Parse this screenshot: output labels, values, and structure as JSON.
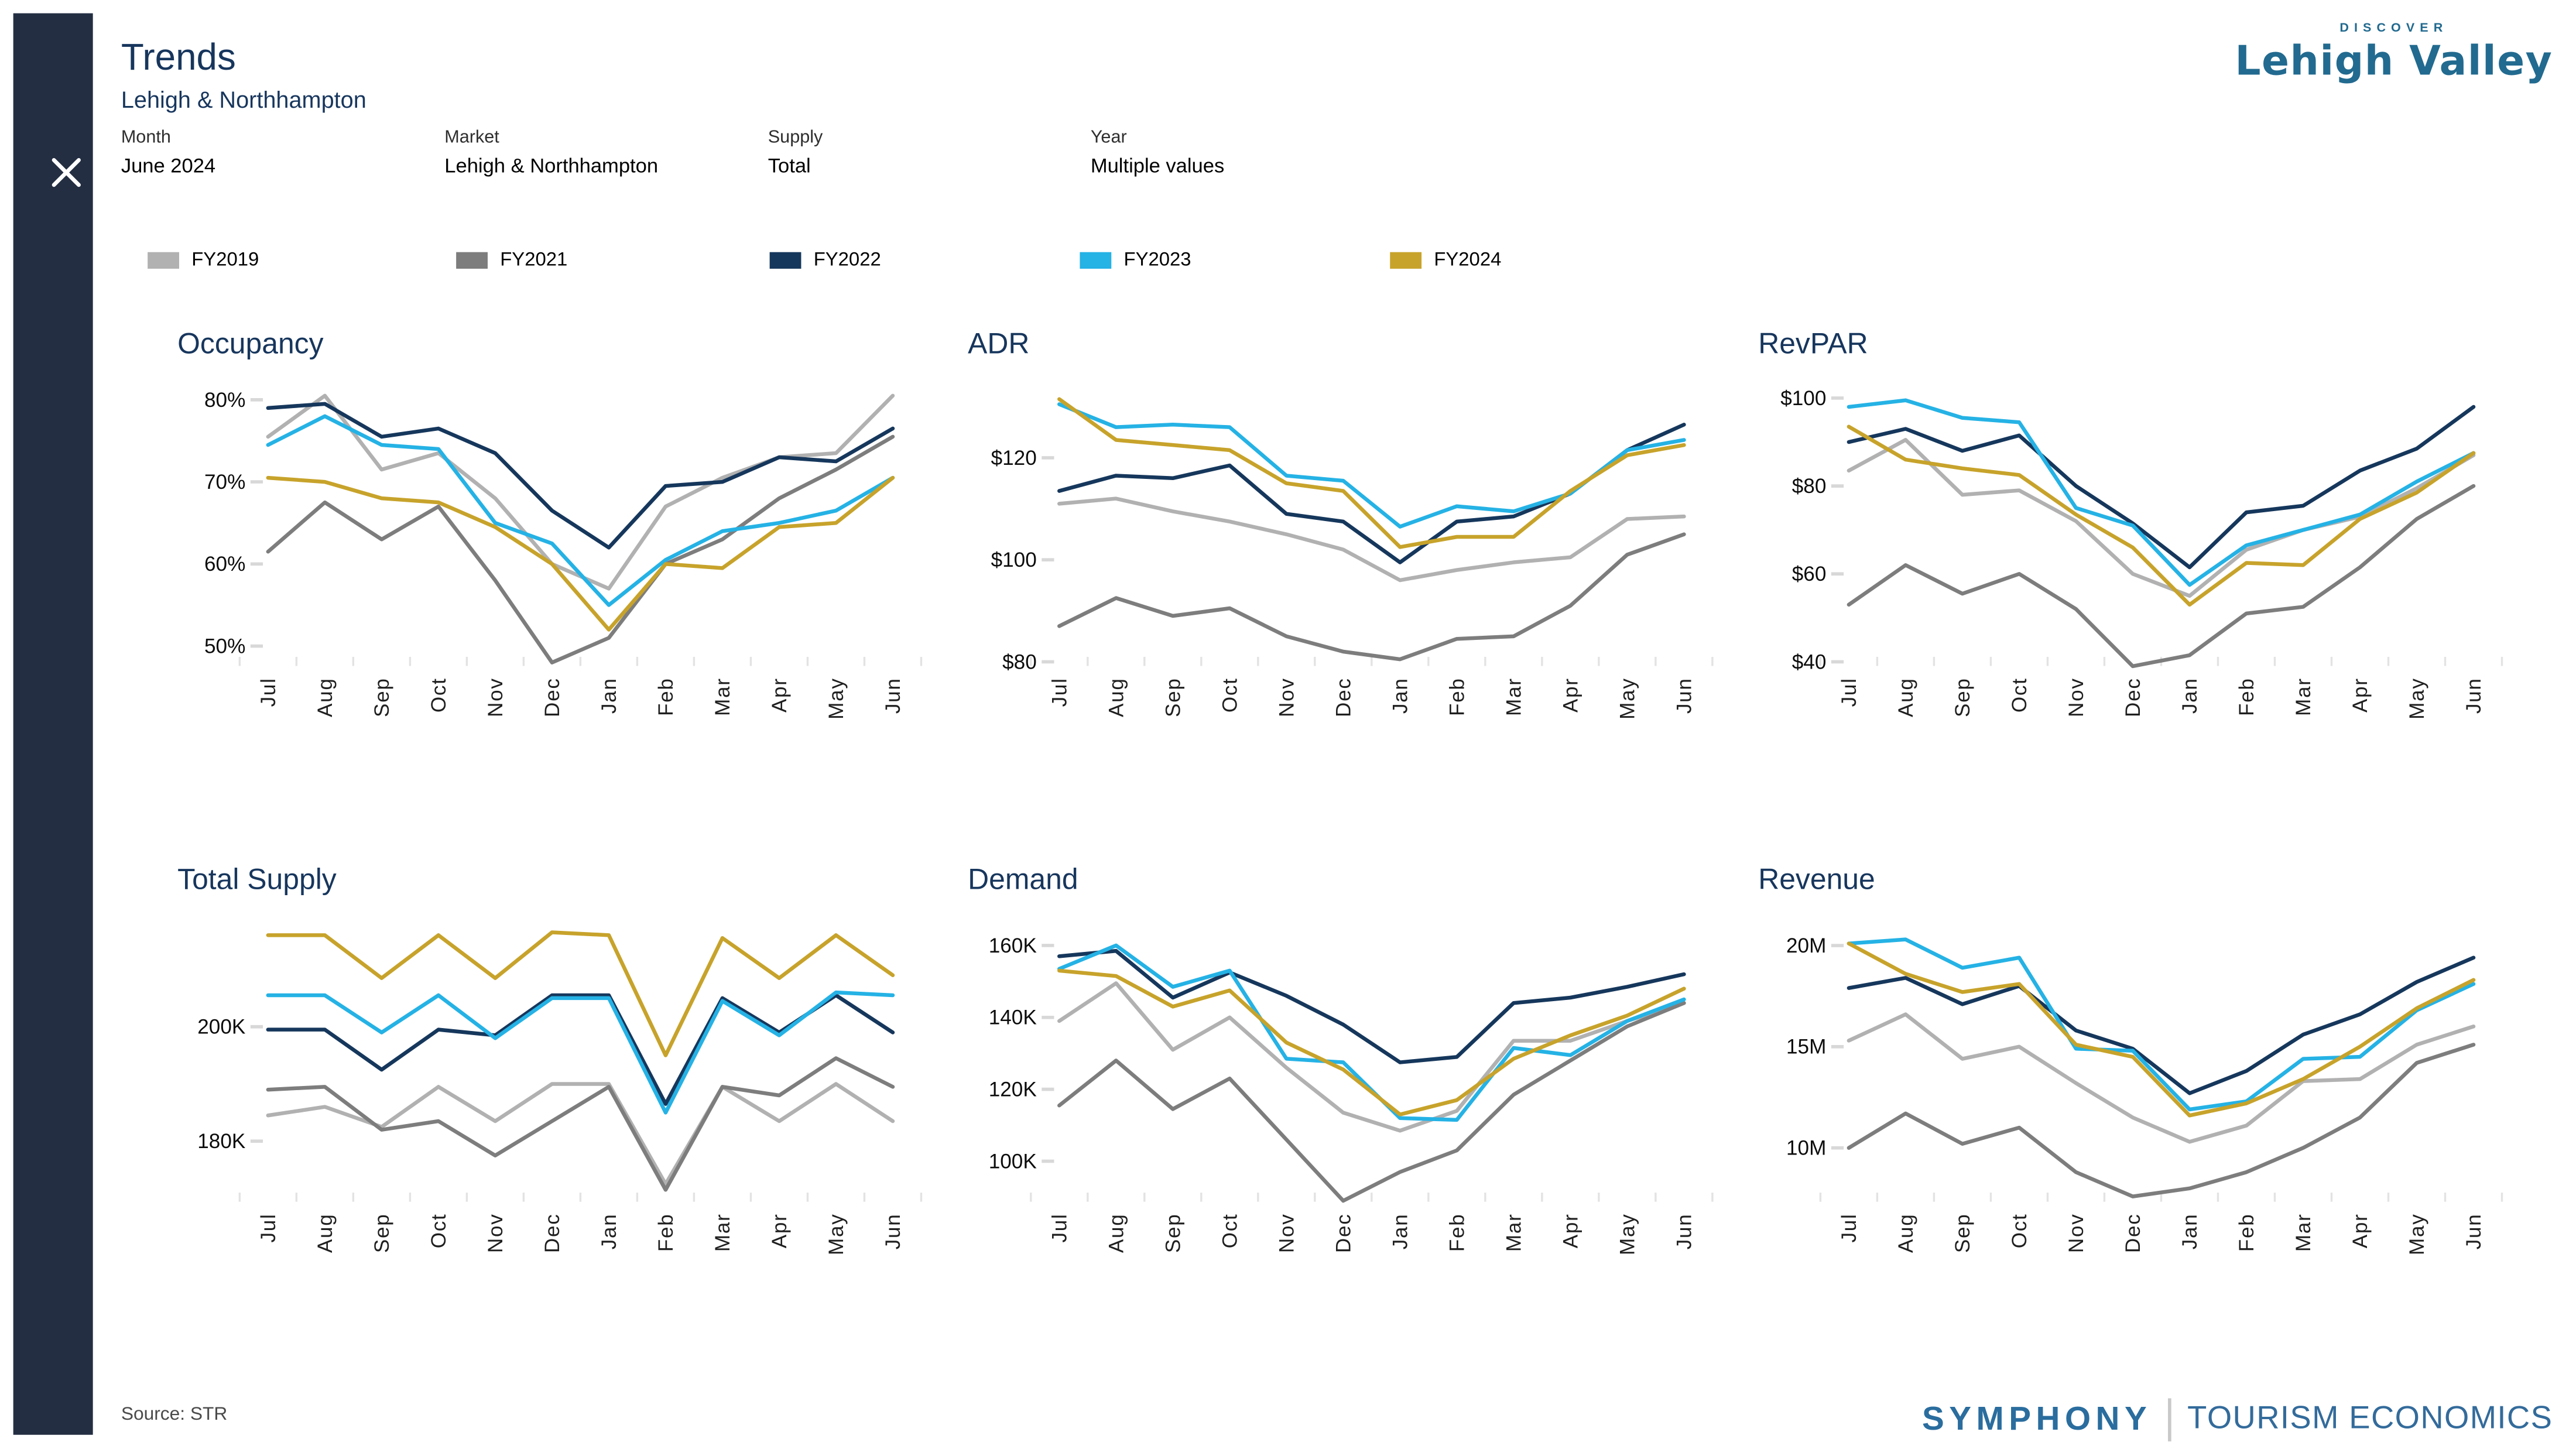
{
  "header": {
    "title": "Trends",
    "subtitle": "Lehigh & Northhampton"
  },
  "icons": {
    "close": "close-x"
  },
  "filters": [
    {
      "label": "Month",
      "value": "June 2024"
    },
    {
      "label": "Market",
      "value": "Lehigh & Northhampton"
    },
    {
      "label": "Supply",
      "value": "Total"
    },
    {
      "label": "Year",
      "value": "Multiple values"
    }
  ],
  "legend": [
    {
      "label": "FY2019",
      "color": "#b1b1b1"
    },
    {
      "label": "FY2021",
      "color": "#7d7d7d"
    },
    {
      "label": "FY2022",
      "color": "#16375c"
    },
    {
      "label": "FY2023",
      "color": "#25b2e5"
    },
    {
      "label": "FY2024",
      "color": "#c7a32b"
    }
  ],
  "months": [
    "Jul",
    "Aug",
    "Sep",
    "Oct",
    "Nov",
    "Dec",
    "Jan",
    "Feb",
    "Mar",
    "Apr",
    "May",
    "Jun"
  ],
  "footer": {
    "source": "Source: STR"
  },
  "logos": {
    "discover": "DISCOVER",
    "brand": "Lehigh Valley",
    "symphony": "SYMPHONY",
    "tourism": "TOURISM ECONOMICS"
  },
  "colors": {
    "accent_navy": "#17365d",
    "sidebar": "#232e42"
  },
  "chart_data": [
    {
      "type": "line",
      "title": "Occupancy",
      "ylabel": "",
      "xlabel": "",
      "categories": [
        "Jul",
        "Aug",
        "Sep",
        "Oct",
        "Nov",
        "Dec",
        "Jan",
        "Feb",
        "Mar",
        "Apr",
        "May",
        "Jun"
      ],
      "ticks": [
        {
          "v": 80,
          "label": "80%"
        },
        {
          "v": 70,
          "label": "70%"
        },
        {
          "v": 60,
          "label": "60%"
        },
        {
          "v": 50,
          "label": "50%"
        }
      ],
      "ylim": [
        47.68,
        81.62
      ],
      "series": [
        {
          "name": "FY2019",
          "color": "#b1b1b1",
          "values": [
            75.5,
            80.5,
            71.5,
            73.5,
            68,
            60,
            57,
            67,
            70.5,
            73,
            73.5,
            80.5
          ]
        },
        {
          "name": "FY2021",
          "color": "#7d7d7d",
          "values": [
            61.5,
            67.5,
            63,
            67,
            58,
            48,
            51,
            60,
            63,
            68,
            71.5,
            75.5
          ]
        },
        {
          "name": "FY2022",
          "color": "#16375c",
          "values": [
            79,
            79.5,
            75.5,
            76.5,
            73.5,
            66.5,
            62,
            69.5,
            70,
            73,
            72.5,
            76.5
          ]
        },
        {
          "name": "FY2023",
          "color": "#25b2e5",
          "values": [
            74.5,
            78,
            74.5,
            74,
            65,
            62.5,
            55,
            60.5,
            64,
            65,
            66.5,
            70.5
          ]
        },
        {
          "name": "FY2024",
          "color": "#c7a32b",
          "values": [
            70.5,
            70,
            68,
            67.5,
            64.5,
            60,
            52,
            60,
            59.5,
            64.5,
            65,
            70.5
          ]
        }
      ]
    },
    {
      "type": "line",
      "title": "ADR",
      "ylabel": "",
      "xlabel": "",
      "categories": [
        "Jul",
        "Aug",
        "Sep",
        "Oct",
        "Nov",
        "Dec",
        "Jan",
        "Feb",
        "Mar",
        "Apr",
        "May",
        "Jun"
      ],
      "ticks": [
        {
          "v": 120,
          "label": "$120"
        },
        {
          "v": 100,
          "label": "$100"
        },
        {
          "v": 80,
          "label": "$80"
        }
      ],
      "ylim": [
        79.35,
        133.98
      ],
      "series": [
        {
          "name": "FY2019",
          "color": "#b1b1b1",
          "values": [
            111,
            112,
            109.5,
            107.5,
            105,
            102,
            96,
            98,
            99.5,
            100.5,
            108,
            108.5
          ]
        },
        {
          "name": "FY2021",
          "color": "#7d7d7d",
          "values": [
            87,
            92.5,
            89,
            90.5,
            85,
            82,
            80.5,
            84.5,
            85,
            91,
            101,
            105
          ]
        },
        {
          "name": "FY2022",
          "color": "#16375c",
          "values": [
            113.5,
            116.5,
            116,
            118.5,
            109,
            107.5,
            99.5,
            107.5,
            108.5,
            113,
            121.5,
            126.5
          ]
        },
        {
          "name": "FY2023",
          "color": "#25b2e5",
          "values": [
            130.5,
            126,
            126.5,
            126,
            116.5,
            115.5,
            106.5,
            110.5,
            109.5,
            113,
            121.5,
            123.5
          ]
        },
        {
          "name": "FY2024",
          "color": "#c7a32b",
          "values": [
            131.5,
            123.5,
            122.5,
            121.5,
            115,
            113.5,
            102.5,
            104.5,
            104.5,
            113.5,
            120.5,
            122.5
          ]
        }
      ]
    },
    {
      "type": "line",
      "title": "RevPAR",
      "ylabel": "",
      "xlabel": "",
      "categories": [
        "Jul",
        "Aug",
        "Sep",
        "Oct",
        "Nov",
        "Dec",
        "Jan",
        "Feb",
        "Mar",
        "Apr",
        "May",
        "Jun"
      ],
      "ticks": [
        {
          "v": 100,
          "label": "$100"
        },
        {
          "v": 80,
          "label": "$80"
        },
        {
          "v": 60,
          "label": "$60"
        },
        {
          "v": 40,
          "label": "$40"
        }
      ],
      "ylim": [
        39.24,
        102.64
      ],
      "series": [
        {
          "name": "FY2019",
          "color": "#b1b1b1",
          "values": [
            83.5,
            90.5,
            78,
            79,
            72,
            60,
            55,
            65.5,
            70,
            73,
            79.5,
            87
          ]
        },
        {
          "name": "FY2021",
          "color": "#7d7d7d",
          "values": [
            53,
            62,
            55.5,
            60,
            52,
            39,
            41.5,
            51,
            52.5,
            61.5,
            72.5,
            80
          ]
        },
        {
          "name": "FY2022",
          "color": "#16375c",
          "values": [
            90,
            93,
            88,
            91.5,
            80,
            71.5,
            61.5,
            74,
            75.5,
            83.5,
            88.5,
            98
          ]
        },
        {
          "name": "FY2023",
          "color": "#25b2e5",
          "values": [
            98,
            99.5,
            95.5,
            94.5,
            75,
            71,
            57.5,
            66.5,
            70,
            73.5,
            81,
            87.5
          ]
        },
        {
          "name": "FY2024",
          "color": "#c7a32b",
          "values": [
            93.5,
            86,
            84,
            82.5,
            73.5,
            66,
            53,
            62.5,
            62,
            72.5,
            78.5,
            87.5
          ]
        }
      ]
    },
    {
      "type": "line",
      "title": "Total Supply",
      "ylabel": "",
      "xlabel": "",
      "categories": [
        "Jul",
        "Aug",
        "Sep",
        "Oct",
        "Nov",
        "Dec",
        "Jan",
        "Feb",
        "Mar",
        "Apr",
        "May",
        "Jun"
      ],
      "ticks": [
        {
          "v": 200,
          "label": "200K"
        },
        {
          "v": 180,
          "label": "180K"
        }
      ],
      "ylim": [
        169.56,
        218.26
      ],
      "unit": "K",
      "series": [
        {
          "name": "FY2019",
          "color": "#b1b1b1",
          "values": [
            184.5,
            186,
            182.5,
            189.5,
            183.5,
            190,
            190,
            172.5,
            189.5,
            183.5,
            190,
            183.5
          ]
        },
        {
          "name": "FY2021",
          "color": "#7d7d7d",
          "values": [
            189,
            189.5,
            182,
            183.5,
            177.5,
            183.5,
            189.5,
            171.5,
            189.5,
            188,
            194.5,
            189.5
          ]
        },
        {
          "name": "FY2022",
          "color": "#16375c",
          "values": [
            199.5,
            199.5,
            192.5,
            199.5,
            198.5,
            205.5,
            205.5,
            186.5,
            205,
            199,
            205.5,
            199
          ]
        },
        {
          "name": "FY2023",
          "color": "#25b2e5",
          "values": [
            205.5,
            205.5,
            199,
            205.5,
            198,
            205,
            205,
            185,
            204.5,
            198.5,
            206,
            205.5
          ]
        },
        {
          "name": "FY2024",
          "color": "#c7a32b",
          "values": [
            216,
            216,
            208.5,
            216,
            208.5,
            216.5,
            216,
            195,
            215.5,
            208.5,
            216,
            209
          ]
        }
      ]
    },
    {
      "type": "line",
      "title": "Demand",
      "ylabel": "",
      "xlabel": "",
      "categories": [
        "Jul",
        "Aug",
        "Sep",
        "Oct",
        "Nov",
        "Dec",
        "Jan",
        "Feb",
        "Mar",
        "Apr",
        "May",
        "Jun"
      ],
      "ticks": [
        {
          "v": 160,
          "label": "160K"
        },
        {
          "v": 140,
          "label": "140K"
        },
        {
          "v": 120,
          "label": "120K"
        },
        {
          "v": 100,
          "label": "100K"
        }
      ],
      "ylim": [
        88.96,
        166.46
      ],
      "unit": "K",
      "series": [
        {
          "name": "FY2019",
          "color": "#b1b1b1",
          "values": [
            139,
            149.5,
            131,
            140,
            126,
            113.5,
            108.5,
            114,
            133.5,
            133.5,
            139,
            144
          ]
        },
        {
          "name": "FY2021",
          "color": "#7d7d7d",
          "values": [
            115.5,
            128,
            114.5,
            123,
            106,
            89,
            97,
            103,
            118.5,
            128,
            137.5,
            144
          ]
        },
        {
          "name": "FY2022",
          "color": "#16375c",
          "values": [
            157,
            158.5,
            145.5,
            152.5,
            146,
            138,
            127.5,
            129,
            144,
            145.5,
            148.5,
            152
          ]
        },
        {
          "name": "FY2023",
          "color": "#25b2e5",
          "values": [
            153.5,
            160,
            148.5,
            153,
            128.5,
            127.5,
            112,
            111.5,
            131.5,
            129.5,
            139,
            145
          ]
        },
        {
          "name": "FY2024",
          "color": "#c7a32b",
          "values": [
            153,
            151.5,
            143,
            147.5,
            133,
            125.5,
            113,
            117,
            128.5,
            135,
            140.5,
            148
          ]
        }
      ]
    },
    {
      "type": "line",
      "title": "Revenue",
      "ylabel": "",
      "xlabel": "",
      "categories": [
        "Jul",
        "Aug",
        "Sep",
        "Oct",
        "Nov",
        "Dec",
        "Jan",
        "Feb",
        "Mar",
        "Apr",
        "May",
        "Jun"
      ],
      "ticks": [
        {
          "v": 20,
          "label": "20M"
        },
        {
          "v": 15,
          "label": "15M"
        },
        {
          "v": 10,
          "label": "10M"
        }
      ],
      "ylim": [
        7.38,
        21.15
      ],
      "unit": "M",
      "series": [
        {
          "name": "FY2019",
          "color": "#b1b1b1",
          "values": [
            15.3,
            16.6,
            14.4,
            15,
            13.2,
            11.5,
            10.3,
            11.1,
            13.3,
            13.4,
            15.1,
            16
          ]
        },
        {
          "name": "FY2021",
          "color": "#7d7d7d",
          "values": [
            10,
            11.7,
            10.2,
            11,
            8.8,
            7.6,
            8,
            8.8,
            10,
            11.5,
            14.2,
            15.1
          ]
        },
        {
          "name": "FY2022",
          "color": "#16375c",
          "values": [
            17.9,
            18.4,
            17.1,
            18,
            15.8,
            14.9,
            12.7,
            13.8,
            15.6,
            16.6,
            18.2,
            19.4
          ]
        },
        {
          "name": "FY2023",
          "color": "#25b2e5",
          "values": [
            20.1,
            20.3,
            18.9,
            19.4,
            14.9,
            14.8,
            11.9,
            12.3,
            14.4,
            14.5,
            16.8,
            18.1
          ]
        },
        {
          "name": "FY2024",
          "color": "#c7a32b",
          "values": [
            20.1,
            18.6,
            17.7,
            18.1,
            15.1,
            14.5,
            11.6,
            12.2,
            13.4,
            15,
            16.9,
            18.3
          ]
        }
      ]
    }
  ]
}
